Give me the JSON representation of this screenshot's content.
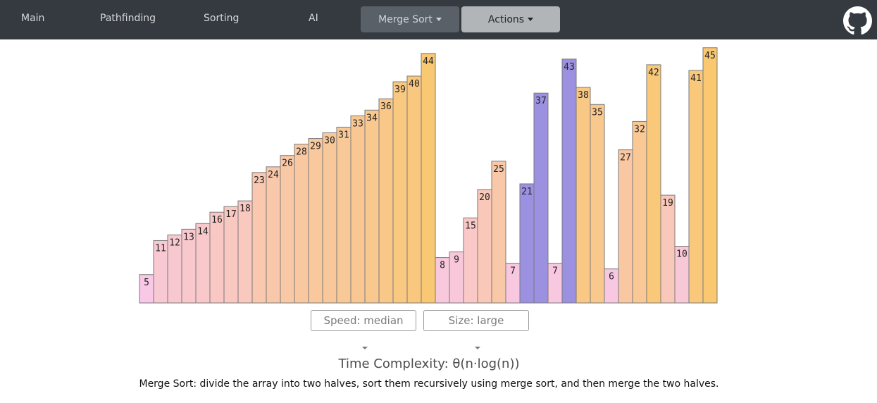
{
  "navbar": {
    "links": [
      "Main",
      "Pathfinding",
      "Sorting",
      "AI"
    ],
    "algorithm_dropdown": "Merge Sort",
    "actions_dropdown": "Actions",
    "github_icon": "github-icon"
  },
  "controls": {
    "speed": "Speed: median",
    "size": "Size: large"
  },
  "info": {
    "complexity": "Time Complexity: θ(n·log(n))",
    "description": "Merge Sort: divide the array into two halves, sort them recursively using merge sort, and then merge the two halves."
  },
  "chart_data": {
    "type": "bar",
    "title": "",
    "xlabel": "",
    "ylabel": "",
    "ylim": [
      0,
      45
    ],
    "values": [
      5,
      11,
      12,
      13,
      14,
      16,
      17,
      18,
      23,
      24,
      26,
      28,
      29,
      30,
      31,
      33,
      34,
      36,
      39,
      40,
      44,
      8,
      9,
      15,
      20,
      25,
      7,
      21,
      37,
      7,
      43,
      38,
      35,
      6,
      27,
      32,
      42,
      19,
      10,
      41,
      45
    ],
    "highlighted_indices": [
      27,
      28,
      30
    ],
    "colors": {
      "low": "#f8c8e6",
      "mid": "#f9c8a8",
      "high": "#f9c870",
      "highlight": "#9b91e0"
    }
  }
}
